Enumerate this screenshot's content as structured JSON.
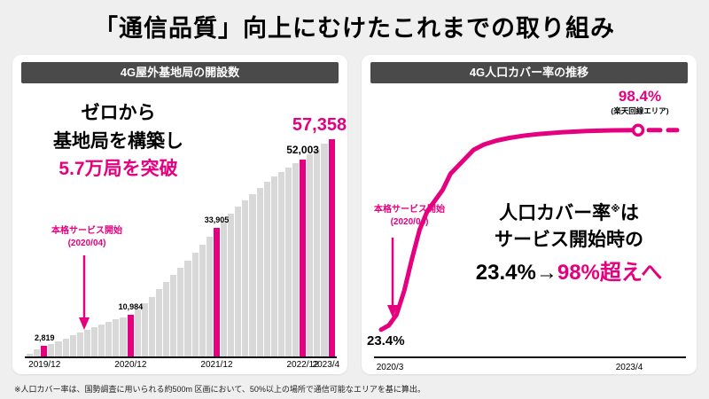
{
  "page": {
    "title": "「通信品質」向上にむけたこれまでの取り組み",
    "footnote": "※人口カバー率は、国勢調査に用いられる約500m 区画において、50%以上の場所で通信可能なエリアを基に算出。"
  },
  "colors": {
    "accent": "#e4007f",
    "header_bar": "#4a4a4a",
    "bar_gray": "#d8d8d8"
  },
  "left_panel": {
    "header": "4G屋外基地局の開設数",
    "headline_line1": "ゼロから",
    "headline_line2": "基地局を構築し",
    "headline_line3": "5.7万局を突破",
    "annotation_line1": "本格サービス開始",
    "annotation_line2": "(2020/04)"
  },
  "right_panel": {
    "header": "4G人口カバー率の推移",
    "peak_value": "98.4%",
    "peak_note": "(楽天回線エリア)",
    "start_value": "23.4%",
    "annotation_line1": "本格サービス開始",
    "annotation_line2": "(2020/04)",
    "message_line1_a": "人口カバー率",
    "message_sup": "※",
    "message_line1_b": "は",
    "message_line2": "サービス開始時の",
    "message_line3_black": "23.4%→",
    "message_line3_pink": "98%超えへ",
    "tick_start": "2020/3",
    "tick_end": "2023/4"
  },
  "chart_data": [
    {
      "type": "bar",
      "title": "4G屋外基地局の開設数",
      "x_start": "2019/10",
      "x_interval": "monthly",
      "values": [
        800,
        1800,
        2819,
        3400,
        4100,
        4800,
        5600,
        6300,
        7000,
        7700,
        8500,
        9200,
        9800,
        10400,
        10984,
        12400,
        14000,
        15800,
        17700,
        19600,
        21500,
        23400,
        25400,
        27400,
        29500,
        31700,
        33905,
        35800,
        37700,
        39500,
        41300,
        43000,
        44600,
        46100,
        47500,
        48800,
        50000,
        51100,
        52003,
        53500,
        54900,
        56200,
        57358
      ],
      "highlight_indices": [
        2,
        14,
        26,
        38,
        42
      ],
      "value_labels": [
        {
          "index": 2,
          "text": "2,819",
          "size": "small"
        },
        {
          "index": 14,
          "text": "10,984",
          "size": "small"
        },
        {
          "index": 26,
          "text": "33,905",
          "size": "small"
        },
        {
          "index": 38,
          "text": "52,003",
          "size": "medium"
        },
        {
          "index": 42,
          "text": "57,358",
          "size": "big"
        }
      ],
      "x_tick_labels": [
        {
          "index": 2,
          "text": "2019/12"
        },
        {
          "index": 14,
          "text": "2020/12"
        },
        {
          "index": 26,
          "text": "2021/12"
        },
        {
          "index": 38,
          "text": "2022/12"
        },
        {
          "index": 42,
          "text": "2023/4"
        }
      ],
      "ylim": [
        0,
        60000
      ],
      "grid": false,
      "legend": false
    },
    {
      "type": "line",
      "title": "4G人口カバー率の推移",
      "unit": "%",
      "x_ticks": [
        "2020/3",
        "2023/4"
      ],
      "points": [
        [
          0,
          23.4
        ],
        [
          0.03,
          25
        ],
        [
          0.06,
          29
        ],
        [
          0.09,
          38
        ],
        [
          0.12,
          50
        ],
        [
          0.15,
          61
        ],
        [
          0.18,
          68
        ],
        [
          0.21,
          72
        ],
        [
          0.24,
          76
        ],
        [
          0.27,
          82
        ],
        [
          0.3,
          85
        ],
        [
          0.33,
          88
        ],
        [
          0.36,
          91
        ],
        [
          0.4,
          93
        ],
        [
          0.45,
          94.5
        ],
        [
          0.5,
          95.5
        ],
        [
          0.56,
          96.4
        ],
        [
          0.62,
          97.0
        ],
        [
          0.7,
          97.6
        ],
        [
          0.8,
          98.1
        ],
        [
          0.9,
          98.35
        ],
        [
          1.0,
          98.4
        ]
      ],
      "start_value": 23.4,
      "end_value": 98.4,
      "ylim": [
        0,
        100
      ],
      "dashed_tail": true,
      "grid": false,
      "legend": false
    }
  ]
}
